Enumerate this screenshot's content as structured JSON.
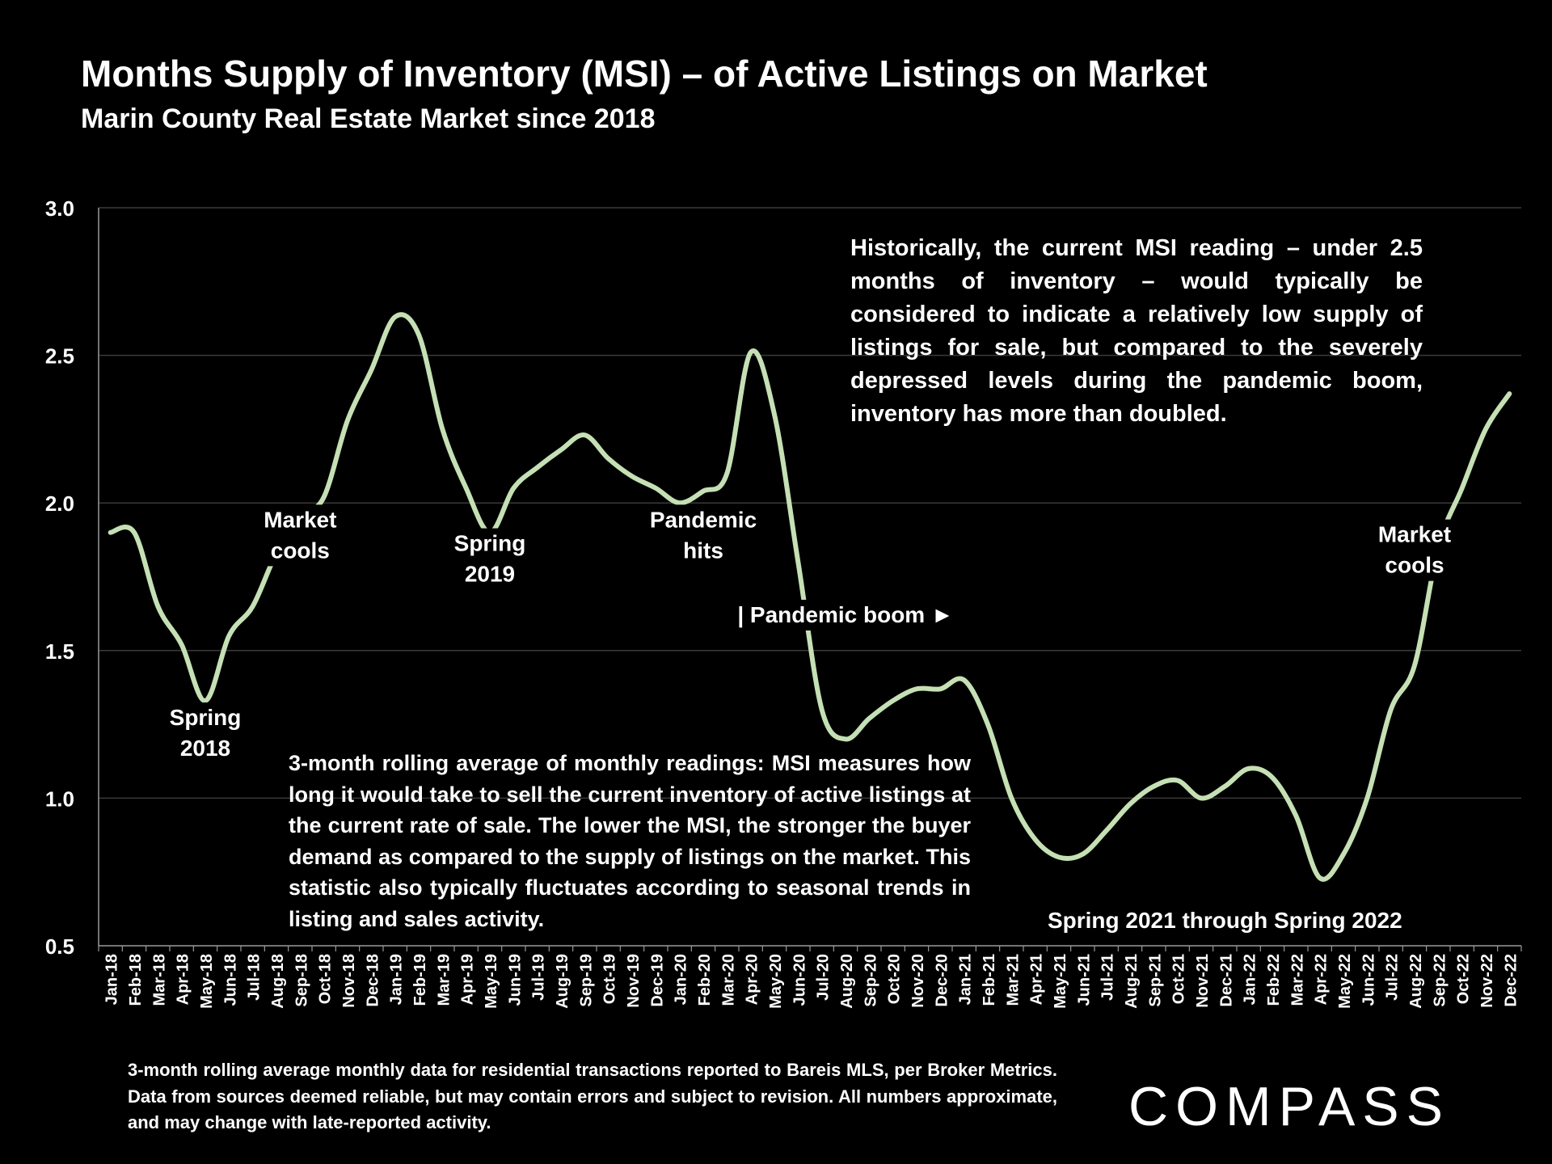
{
  "title": "Months Supply of Inventory (MSI) – of Active Listings on Market",
  "subtitle": "Marin County Real Estate Market since 2018",
  "notes": {
    "top": "Historically, the current MSI reading – under 2.5 months of inventory – would typically be considered to indicate a relatively low supply of listings for sale, but compared to the severely depressed levels during the pandemic boom, inventory has more than doubled.",
    "middle": "3-month rolling average of monthly readings: MSI measures how long it would take to sell the current inventory of active listings at the current rate of sale. The lower the MSI, the stronger the buyer demand as compared to the supply of listings on the market. This statistic also typically fluctuates according to seasonal trends in listing and sales activity."
  },
  "footnote": "3-month rolling average monthly data for residential transactions reported to Bareis MLS, per Broker Metrics. Data from sources deemed reliable, but may contain errors and subject to revision. All numbers approximate, and may change with late-reported activity.",
  "logo": "COMPASS",
  "colors": {
    "background": "#000000",
    "line": "#c5e0b4",
    "text": "#ffffff",
    "grid": "#3a3a3a"
  },
  "chart_data": {
    "type": "line",
    "title": "Months Supply of Inventory (MSI) – of Active Listings on Market",
    "xlabel": "",
    "ylabel": "",
    "ylim": [
      0.5,
      3.0
    ],
    "yticks": [
      "0.5",
      "1.0",
      "1.5",
      "2.0",
      "2.5",
      "3.0"
    ],
    "grid": true,
    "categories": [
      "Jan-18",
      "Feb-18",
      "Mar-18",
      "Apr-18",
      "May-18",
      "Jun-18",
      "Jul-18",
      "Aug-18",
      "Sep-18",
      "Oct-18",
      "Nov-18",
      "Dec-18",
      "Jan-19",
      "Feb-19",
      "Mar-19",
      "Apr-19",
      "May-19",
      "Jun-19",
      "Jul-19",
      "Aug-19",
      "Sep-19",
      "Oct-19",
      "Nov-19",
      "Dec-19",
      "Jan-20",
      "Feb-20",
      "Mar-20",
      "Apr-20",
      "May-20",
      "Jun-20",
      "Jul-20",
      "Aug-20",
      "Sep-20",
      "Oct-20",
      "Nov-20",
      "Dec-20",
      "Jan-21",
      "Feb-21",
      "Mar-21",
      "Apr-21",
      "May-21",
      "Jun-21",
      "Jul-21",
      "Aug-21",
      "Sep-21",
      "Oct-21",
      "Nov-21",
      "Dec-21",
      "Jan-22",
      "Feb-22",
      "Mar-22",
      "Apr-22",
      "May-22",
      "Jun-22",
      "Jul-22",
      "Aug-22",
      "Sep-22",
      "Oct-22",
      "Nov-22",
      "Dec-22"
    ],
    "series": [
      {
        "name": "MSI",
        "values": [
          1.9,
          1.9,
          1.65,
          1.52,
          1.33,
          1.55,
          1.65,
          1.83,
          1.95,
          2.02,
          2.28,
          2.45,
          2.63,
          2.57,
          2.25,
          2.05,
          1.9,
          2.05,
          2.12,
          2.18,
          2.23,
          2.15,
          2.09,
          2.05,
          2.0,
          2.04,
          2.1,
          2.51,
          2.3,
          1.8,
          1.3,
          1.2,
          1.27,
          1.33,
          1.37,
          1.37,
          1.4,
          1.25,
          1.0,
          0.86,
          0.8,
          0.81,
          0.89,
          0.98,
          1.04,
          1.06,
          1.0,
          1.04,
          1.1,
          1.07,
          0.94,
          0.73,
          0.81,
          1.0,
          1.3,
          1.45,
          1.85,
          2.05,
          2.25,
          2.37
        ]
      }
    ],
    "annotations": [
      {
        "lines": [
          "Spring",
          "2018"
        ],
        "x": "May-18",
        "y": 1.22
      },
      {
        "lines": [
          "Market",
          "cools"
        ],
        "x": "Sep-18",
        "y": 1.89
      },
      {
        "lines": [
          "Spring",
          "2019"
        ],
        "x": "May-19",
        "y": 1.81
      },
      {
        "lines": [
          "Pandemic",
          "hits"
        ],
        "x": "Feb-20",
        "y": 1.89
      },
      {
        "lines": [
          "| Pandemic boom ►"
        ],
        "x": "Aug-20",
        "y": 1.62
      },
      {
        "lines": [
          "Spring 2021 through Spring 2022"
        ],
        "x": "Dec-21",
        "y": 0.585
      },
      {
        "lines": [
          "Market",
          "cools"
        ],
        "x": "Aug-22",
        "y": 1.84
      }
    ]
  }
}
